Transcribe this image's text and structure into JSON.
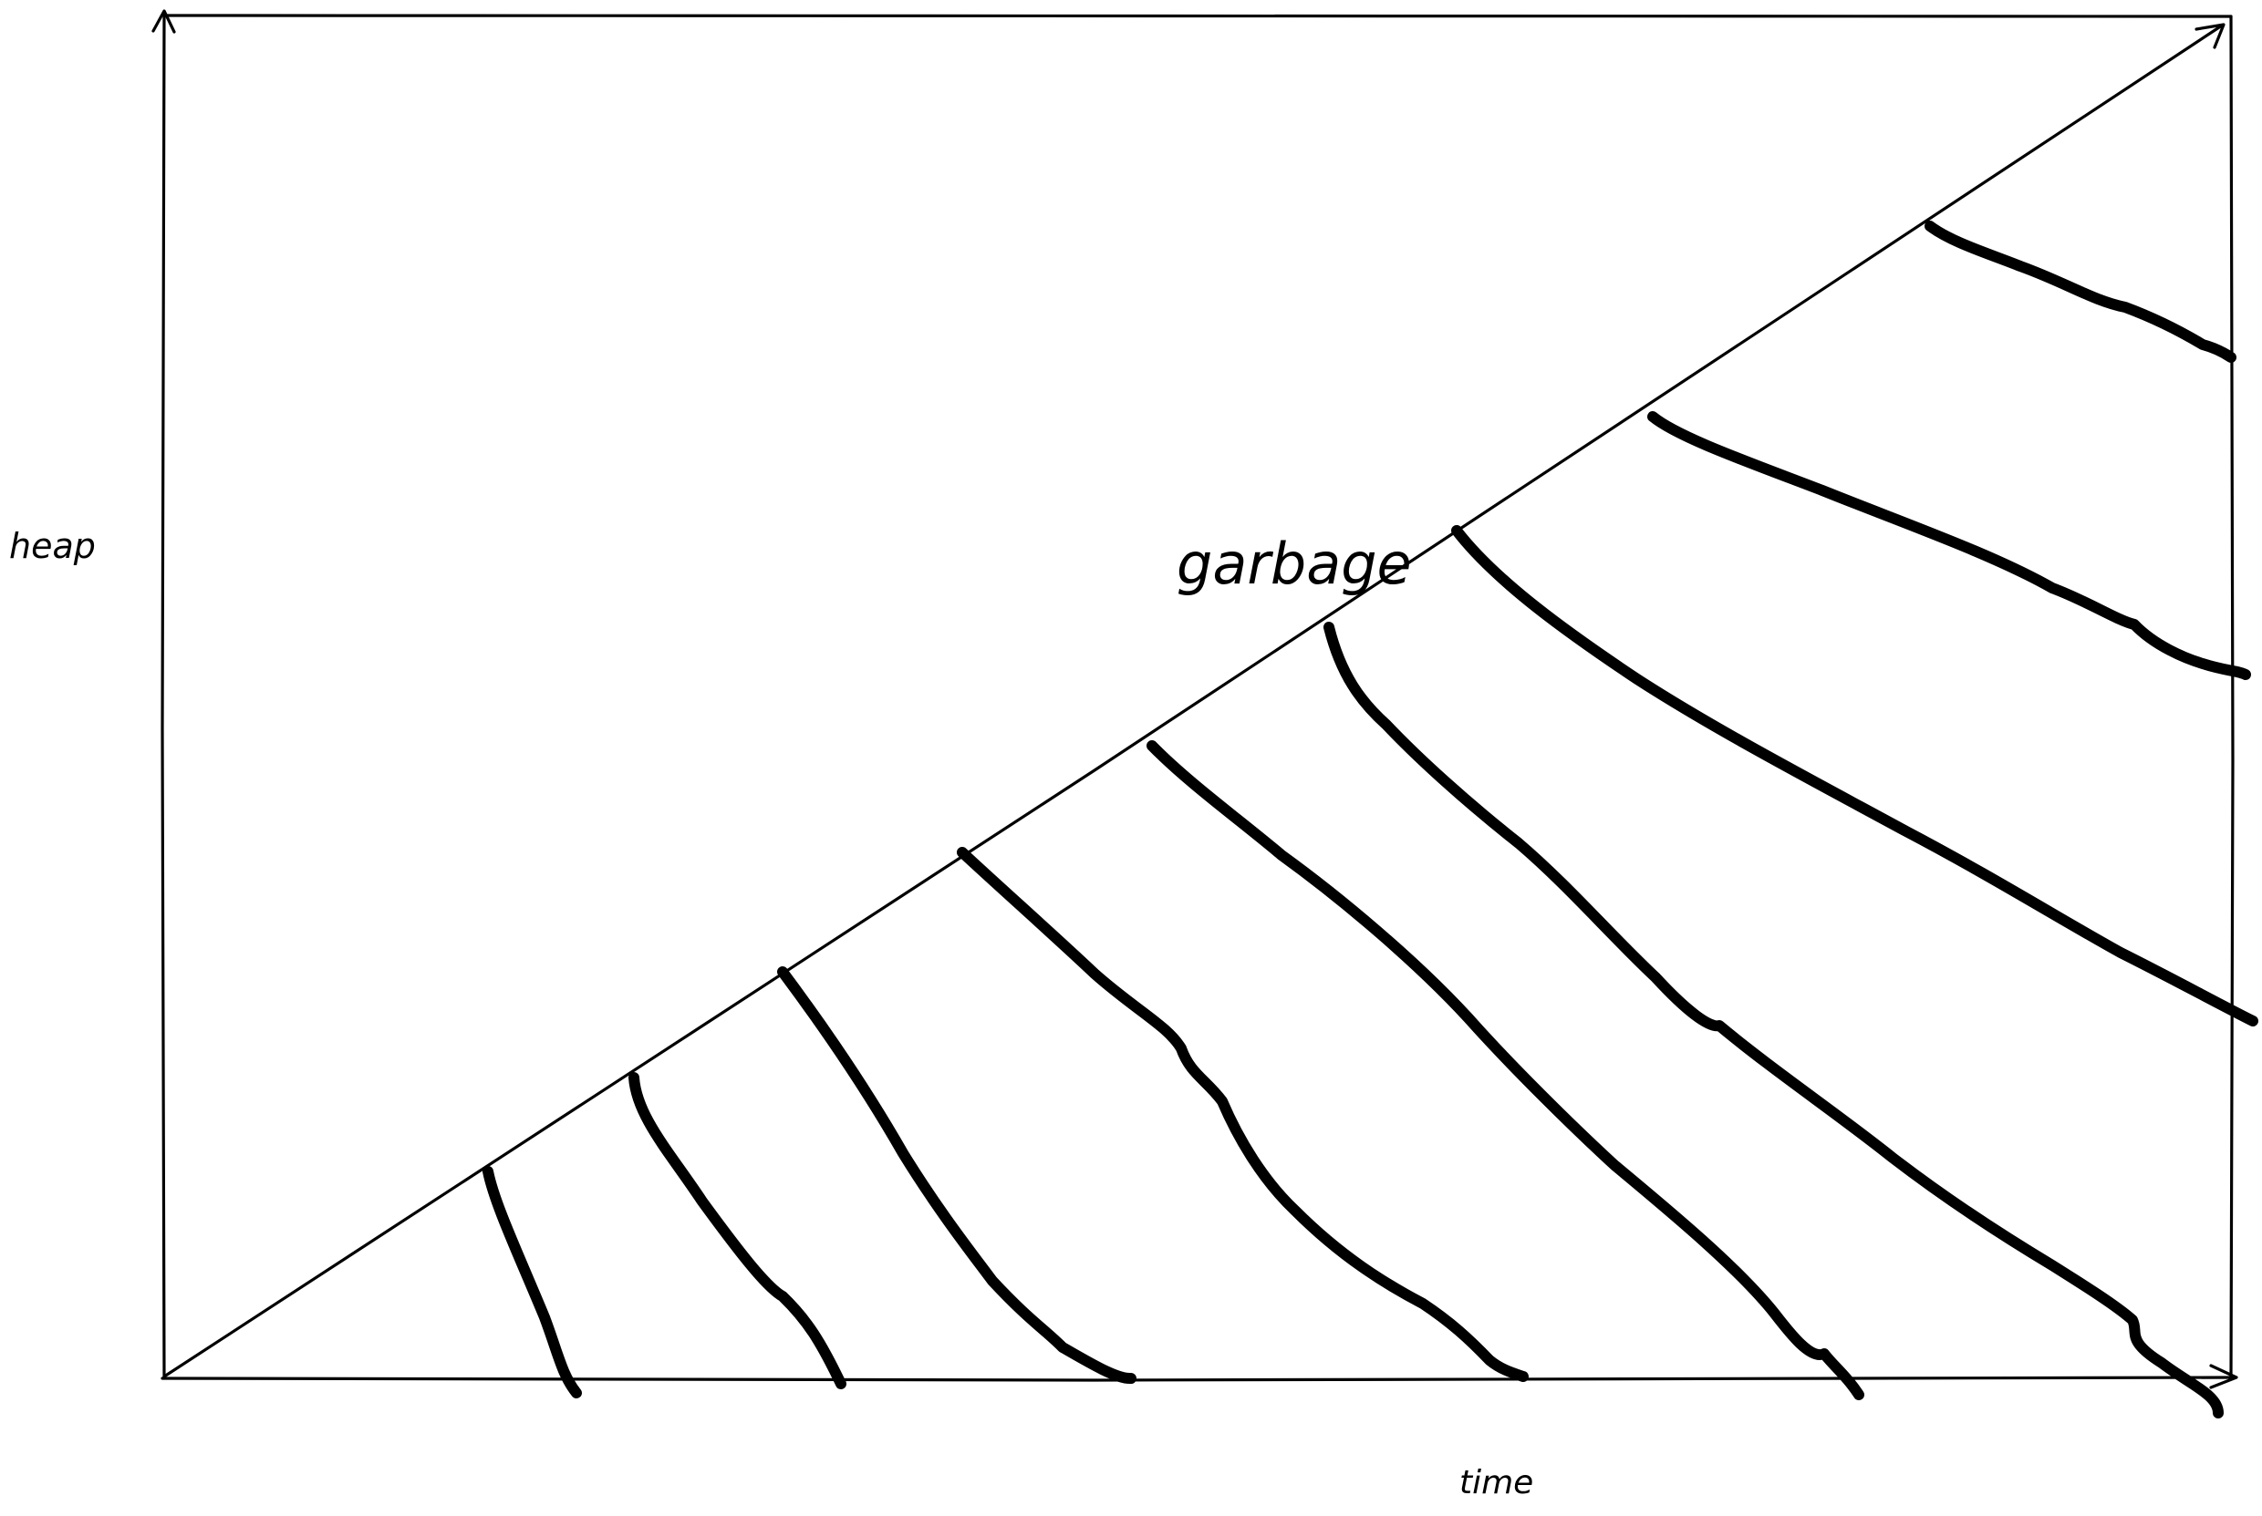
{
  "labels": {
    "y_axis": "heap",
    "x_axis": "time",
    "region": "garbage"
  },
  "colors": {
    "ink": "#000000",
    "background": "#ffffff"
  }
}
